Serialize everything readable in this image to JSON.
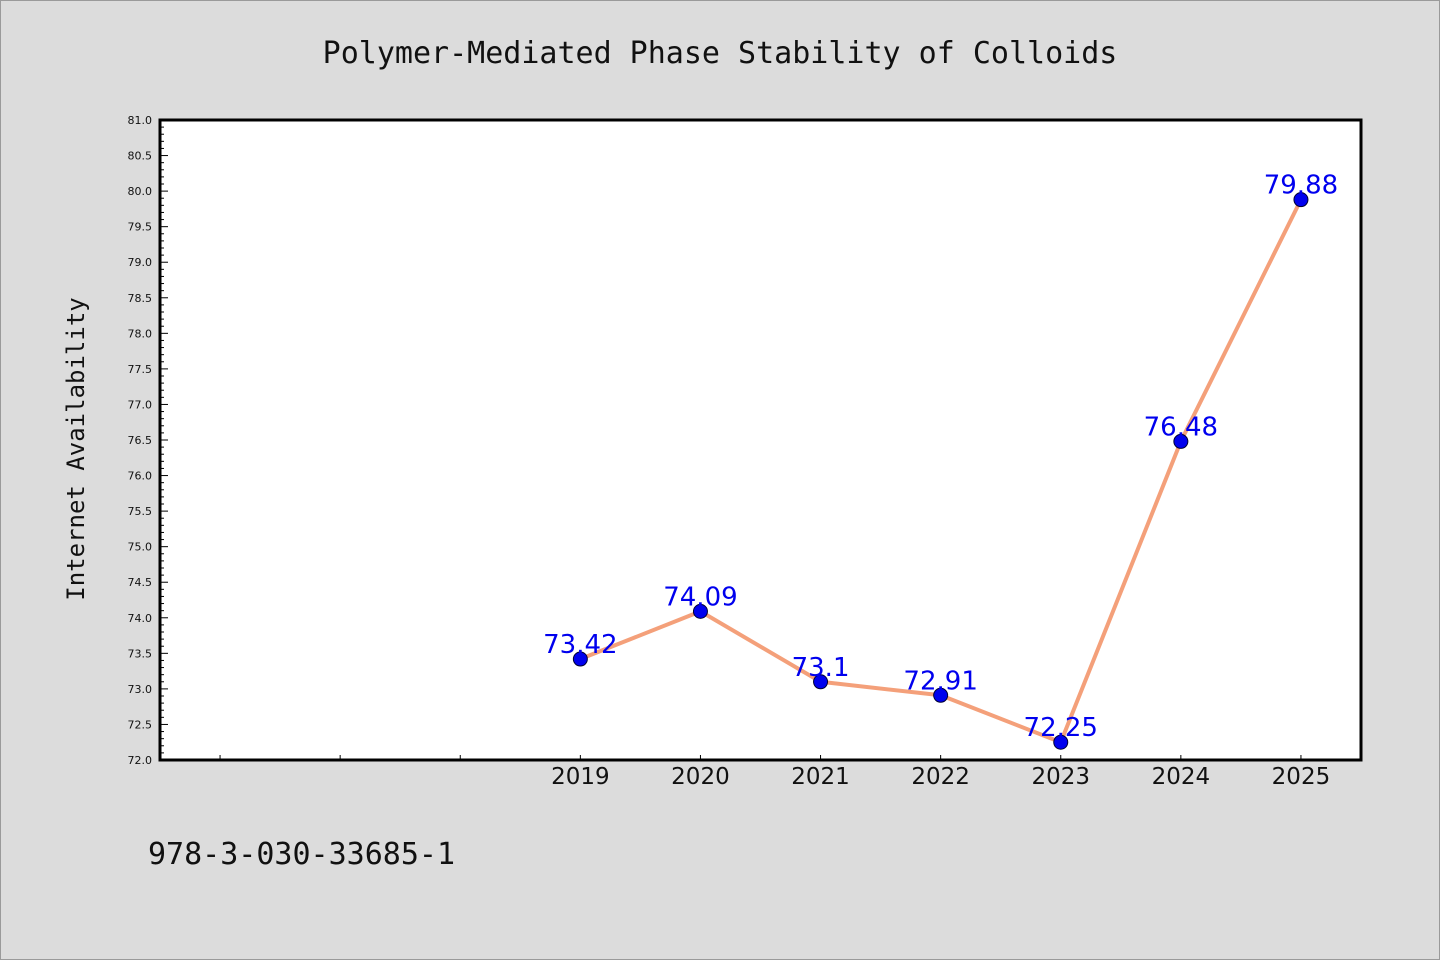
{
  "footer": {
    "isbn": "978-3-030-33685-1"
  },
  "colors": {
    "line": "#f4a07a",
    "marker": "#0000ee",
    "label": "#0000ee",
    "background": "#dcdcdc",
    "plot_bg": "#ffffff"
  },
  "chart_data": {
    "type": "line",
    "title": "Polymer-Mediated Phase Stability of Colloids",
    "xlabel": "",
    "ylabel": "Internet Availability",
    "x": [
      2019,
      2020,
      2021,
      2022,
      2023,
      2024,
      2025
    ],
    "x_labels": [
      "2019",
      "2020",
      "2021",
      "2022",
      "2023",
      "2024",
      "2025"
    ],
    "xlim": [
      2015.5,
      2025.5
    ],
    "ylim": [
      72.0,
      81.0
    ],
    "yticks": [
      "72.0",
      "72.5",
      "73.0",
      "73.5",
      "74.0",
      "74.5",
      "75.0",
      "75.5",
      "76.0",
      "76.5",
      "77.0",
      "77.5",
      "78.0",
      "78.5",
      "79.0",
      "79.5",
      "80.0",
      "80.5",
      "81.0"
    ],
    "series": [
      {
        "values": [
          73.42,
          74.09,
          73.1,
          72.91,
          72.25,
          76.48,
          79.88
        ],
        "labels": [
          "73.42",
          "74.09",
          "73.1",
          "72.91",
          "72.25",
          "76.48",
          "79.88"
        ]
      }
    ],
    "grid": false,
    "legend": "none"
  }
}
